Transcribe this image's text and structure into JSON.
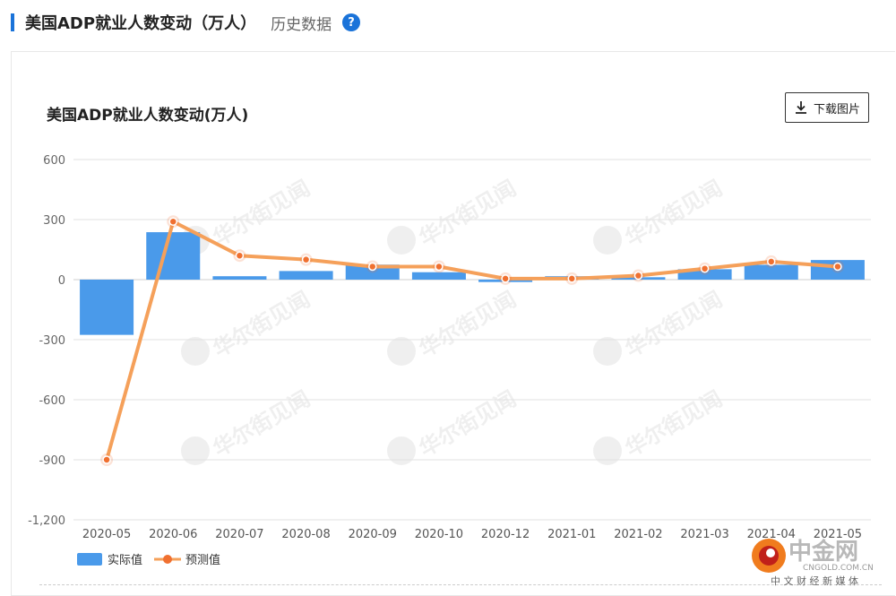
{
  "header": {
    "title": "美国ADP就业人数变动（万人）",
    "history_link": "历史数据",
    "help_icon": "question-icon"
  },
  "toolbar": {
    "download_label": "下载图片",
    "download_icon": "download-icon"
  },
  "watermark": {
    "text": "华尔街见闻"
  },
  "site_logo": {
    "name": "中金网",
    "domain": "CNGOLD.COM.CN",
    "tagline": "中 文 财 经 新 媒 体"
  },
  "colors": {
    "bar": "#4a9aea",
    "line": "#f5a05a",
    "marker": "#f07030",
    "accent": "#1a73d9"
  },
  "chart_data": {
    "type": "bar",
    "title": "美国ADP就业人数变动(万人)",
    "xlabel": "",
    "ylabel": "",
    "categories": [
      "2020-05",
      "2020-06",
      "2020-07",
      "2020-08",
      "2020-09",
      "2020-10",
      "2020-12",
      "2021-01",
      "2021-02",
      "2021-03",
      "2021-04",
      "2021-05"
    ],
    "ylim": [
      -1200,
      600
    ],
    "yticks": [
      600,
      300,
      0,
      -300,
      -600,
      -900,
      -1200
    ],
    "ytick_labels": [
      "600",
      "300",
      "0",
      "-300",
      "-600",
      "-900",
      "-1,200"
    ],
    "grid": true,
    "legend_position": "bottom-left",
    "series": [
      {
        "name": "实际值",
        "type": "bar",
        "values": [
          -276,
          237,
          17,
          43,
          75,
          37,
          -12,
          17,
          12,
          52,
          74,
          98
        ]
      },
      {
        "name": "预测值",
        "type": "line",
        "values": [
          -900,
          290,
          120,
          100,
          65,
          65,
          5,
          5,
          20,
          55,
          90,
          65
        ]
      }
    ]
  }
}
